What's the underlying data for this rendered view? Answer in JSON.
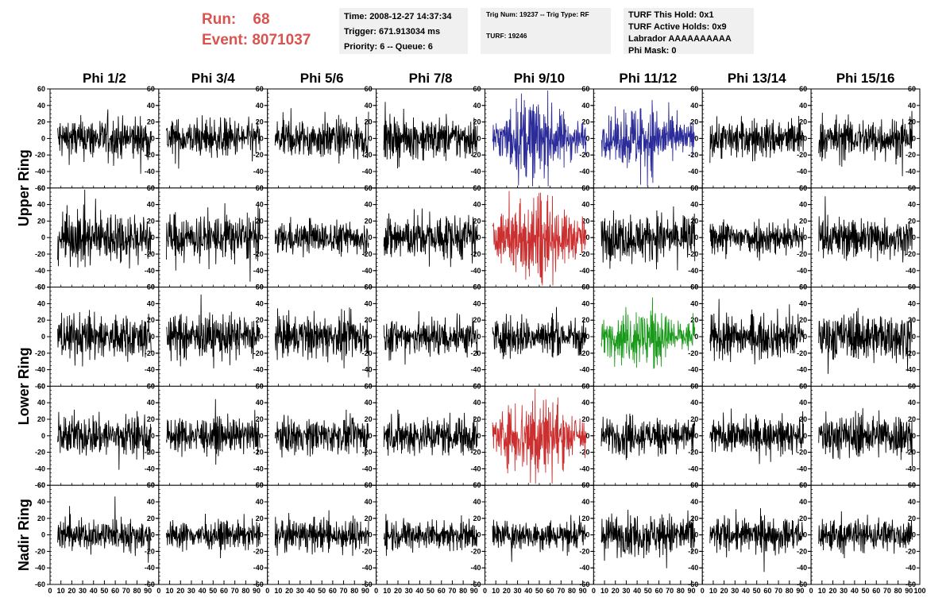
{
  "header": {
    "run_label": "Run:",
    "run_value": "68",
    "event_label": "Event:",
    "event_value": "8071037"
  },
  "info_boxes": {
    "time": "Time: 2008-12-27 14:37:34",
    "trigger": "Trigger: 671.913034 ms",
    "priority": "Priority: 6 -- Queue: 6",
    "trig_num": "Trig Num: 19237 -- Trig Type: RF",
    "turf": "TURF: 19246",
    "turf_this_hold": "TURF This Hold: 0x1",
    "turf_active_holds": "TURF Active Holds: 0x9",
    "labrador": "Labrador AAAAAAAAAA",
    "phi_mask": "Phi Mask: 0"
  },
  "colors": {
    "default_trace": "#000000",
    "blue_trace": "#2b2b9a",
    "red_trace": "#cc2f2f",
    "green_trace": "#1a9a1a",
    "header_red": "#d9534f",
    "info_bg": "#f0f0f0"
  },
  "chart_data": {
    "type": "line",
    "columns": [
      "Phi 1/2",
      "Phi 3/4",
      "Phi 5/6",
      "Phi 7/8",
      "Phi 9/10",
      "Phi 11/12",
      "Phi 13/14",
      "Phi 15/16"
    ],
    "ring_labels": [
      "Upper Ring",
      "Lower Ring",
      "Nadir Ring"
    ],
    "row_ring": [
      0,
      0,
      1,
      1,
      2
    ],
    "rows": 5,
    "ylim": [
      -60,
      60
    ],
    "xlim": [
      0,
      100
    ],
    "left_yticks": [
      -60,
      -40,
      -20,
      0,
      20,
      40,
      60
    ],
    "right_yticks": [
      -60,
      -40,
      -20,
      0,
      20,
      40,
      60
    ],
    "xticks": [
      0,
      10,
      20,
      30,
      40,
      50,
      60,
      70,
      80,
      90,
      100
    ],
    "highlighted": [
      {
        "row": 0,
        "col": 4,
        "color": "blue"
      },
      {
        "row": 0,
        "col": 5,
        "color": "blue"
      },
      {
        "row": 1,
        "col": 4,
        "color": "red"
      },
      {
        "row": 2,
        "col": 5,
        "color": "green"
      },
      {
        "row": 3,
        "col": 4,
        "color": "red"
      }
    ],
    "trace_amplitude": [
      [
        18,
        17,
        17,
        18,
        28,
        24,
        17,
        18
      ],
      [
        22,
        20,
        14,
        20,
        30,
        20,
        15,
        18
      ],
      [
        20,
        19,
        18,
        17,
        17,
        22,
        18,
        20
      ],
      [
        18,
        15,
        15,
        17,
        30,
        16,
        15,
        19
      ],
      [
        14,
        12,
        14,
        13,
        13,
        18,
        15,
        15
      ]
    ]
  }
}
